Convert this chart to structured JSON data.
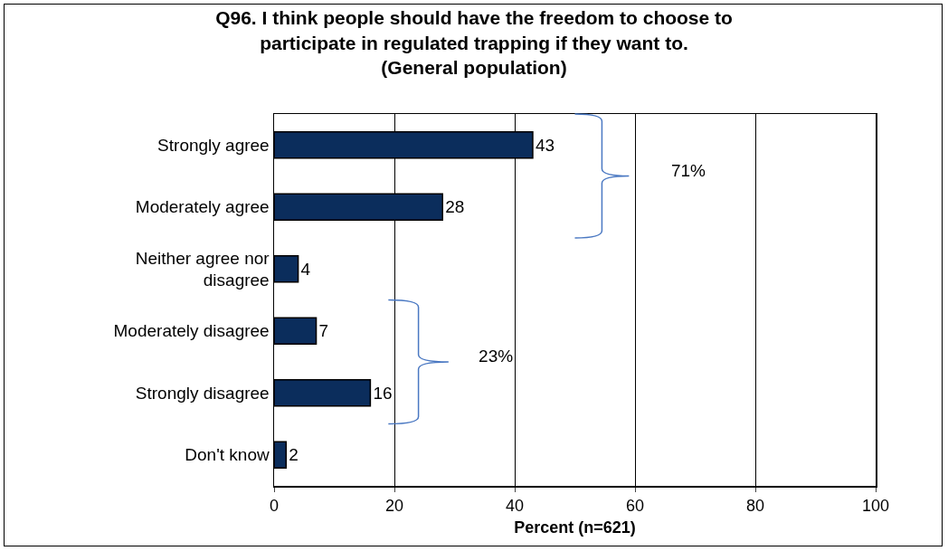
{
  "chart_data": {
    "type": "bar",
    "orientation": "horizontal",
    "title": "Q96. I think people should have the freedom to choose to participate in regulated trapping if they want to. (General population)",
    "xlabel": "Percent (n=621)",
    "categories": [
      "Strongly agree",
      "Moderately agree",
      "Neither agree nor disagree",
      "Moderately disagree",
      "Strongly disagree",
      "Don't know"
    ],
    "values": [
      43,
      28,
      4,
      7,
      16,
      2
    ],
    "color": "#0b2d5c",
    "xlim": [
      0,
      100
    ],
    "xticks": [
      0,
      20,
      40,
      60,
      80,
      100
    ],
    "grid": "x",
    "data_labels": true,
    "legend": false,
    "annotations": [
      "71%",
      "23%"
    ]
  }
}
